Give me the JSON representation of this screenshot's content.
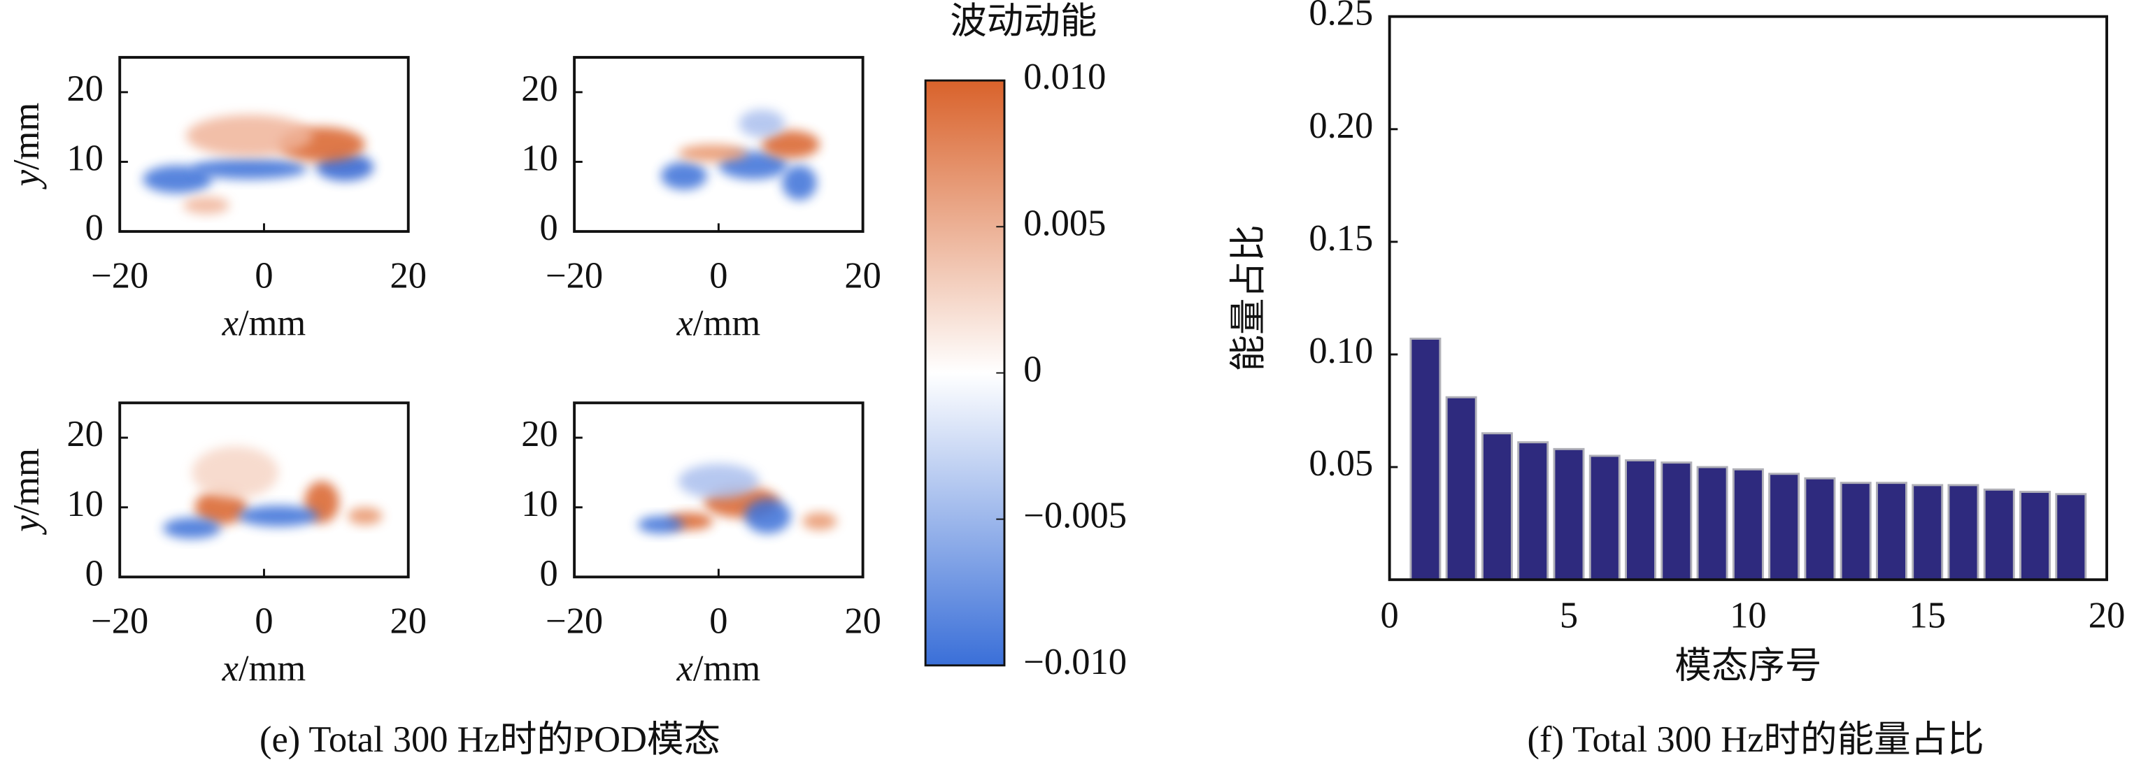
{
  "chart_data": [
    {
      "type": "heatmap",
      "xlabel": "x/mm",
      "ylabel": "y/mm",
      "xlim": [
        -20,
        20
      ],
      "ylim": [
        0,
        25
      ],
      "xticks": [
        {
          "value": -20,
          "label": "−20"
        },
        0,
        20
      ],
      "yticks": [
        0,
        10,
        20
      ]
    },
    {
      "type": "heatmap",
      "xlabel": "x/mm",
      "ylabel": "y/mm",
      "xlim": [
        -20,
        20
      ],
      "ylim": [
        0,
        25
      ],
      "xticks": [
        {
          "value": -20,
          "label": "−20"
        },
        0,
        20
      ],
      "yticks": [
        0,
        10,
        20
      ]
    },
    {
      "type": "heatmap",
      "xlabel": "x/mm",
      "ylabel": "y/mm",
      "xlim": [
        -20,
        20
      ],
      "ylim": [
        0,
        25
      ],
      "xticks": [
        {
          "value": -20,
          "label": "−20"
        },
        0,
        20
      ],
      "yticks": [
        0,
        10,
        20
      ]
    },
    {
      "type": "heatmap",
      "xlabel": "x/mm",
      "ylabel": "y/mm",
      "xlim": [
        -20,
        20
      ],
      "ylim": [
        0,
        25
      ],
      "xticks": [
        {
          "value": -20,
          "label": "−20"
        },
        0,
        20
      ],
      "yticks": [
        0,
        10,
        20
      ]
    },
    {
      "type": "colorbar",
      "title": "波动动能",
      "ylim": [
        -0.01,
        0.01
      ],
      "yticks": [
        {
          "value": 0.01,
          "label": "0.010"
        },
        0.005,
        0,
        {
          "value": -0.005,
          "label": "−0.005"
        },
        {
          "value": -0.01,
          "label": "−0.010"
        }
      ],
      "colors": [
        "#3a6fd8",
        "#ffffff",
        "#d9622b"
      ]
    },
    {
      "type": "bar",
      "xlabel": "模态序号",
      "ylabel": "能量占比",
      "color": "#2e2a7e",
      "x": [
        1,
        2,
        3,
        4,
        5,
        6,
        7,
        8,
        9,
        10,
        11,
        12,
        13,
        14,
        15,
        16,
        17,
        18,
        19
      ],
      "values": [
        0.107,
        0.081,
        0.065,
        0.061,
        0.058,
        0.055,
        0.053,
        0.052,
        0.05,
        0.049,
        0.047,
        0.045,
        0.043,
        0.043,
        0.042,
        0.042,
        0.04,
        0.039,
        0.038
      ],
      "xlim": [
        0,
        20
      ],
      "xticks": [
        0,
        5,
        10,
        15,
        20
      ],
      "ylim": [
        0,
        0.25
      ],
      "yticks": [
        0.05,
        {
          "value": 0.1,
          "label": "0.10"
        },
        0.15,
        {
          "value": 0.2,
          "label": "0.20"
        },
        0.25
      ]
    }
  ],
  "captions": [
    "(e) Total 300 Hz时的POD模态",
    "(f) Total 300 Hz时的能量占比"
  ]
}
